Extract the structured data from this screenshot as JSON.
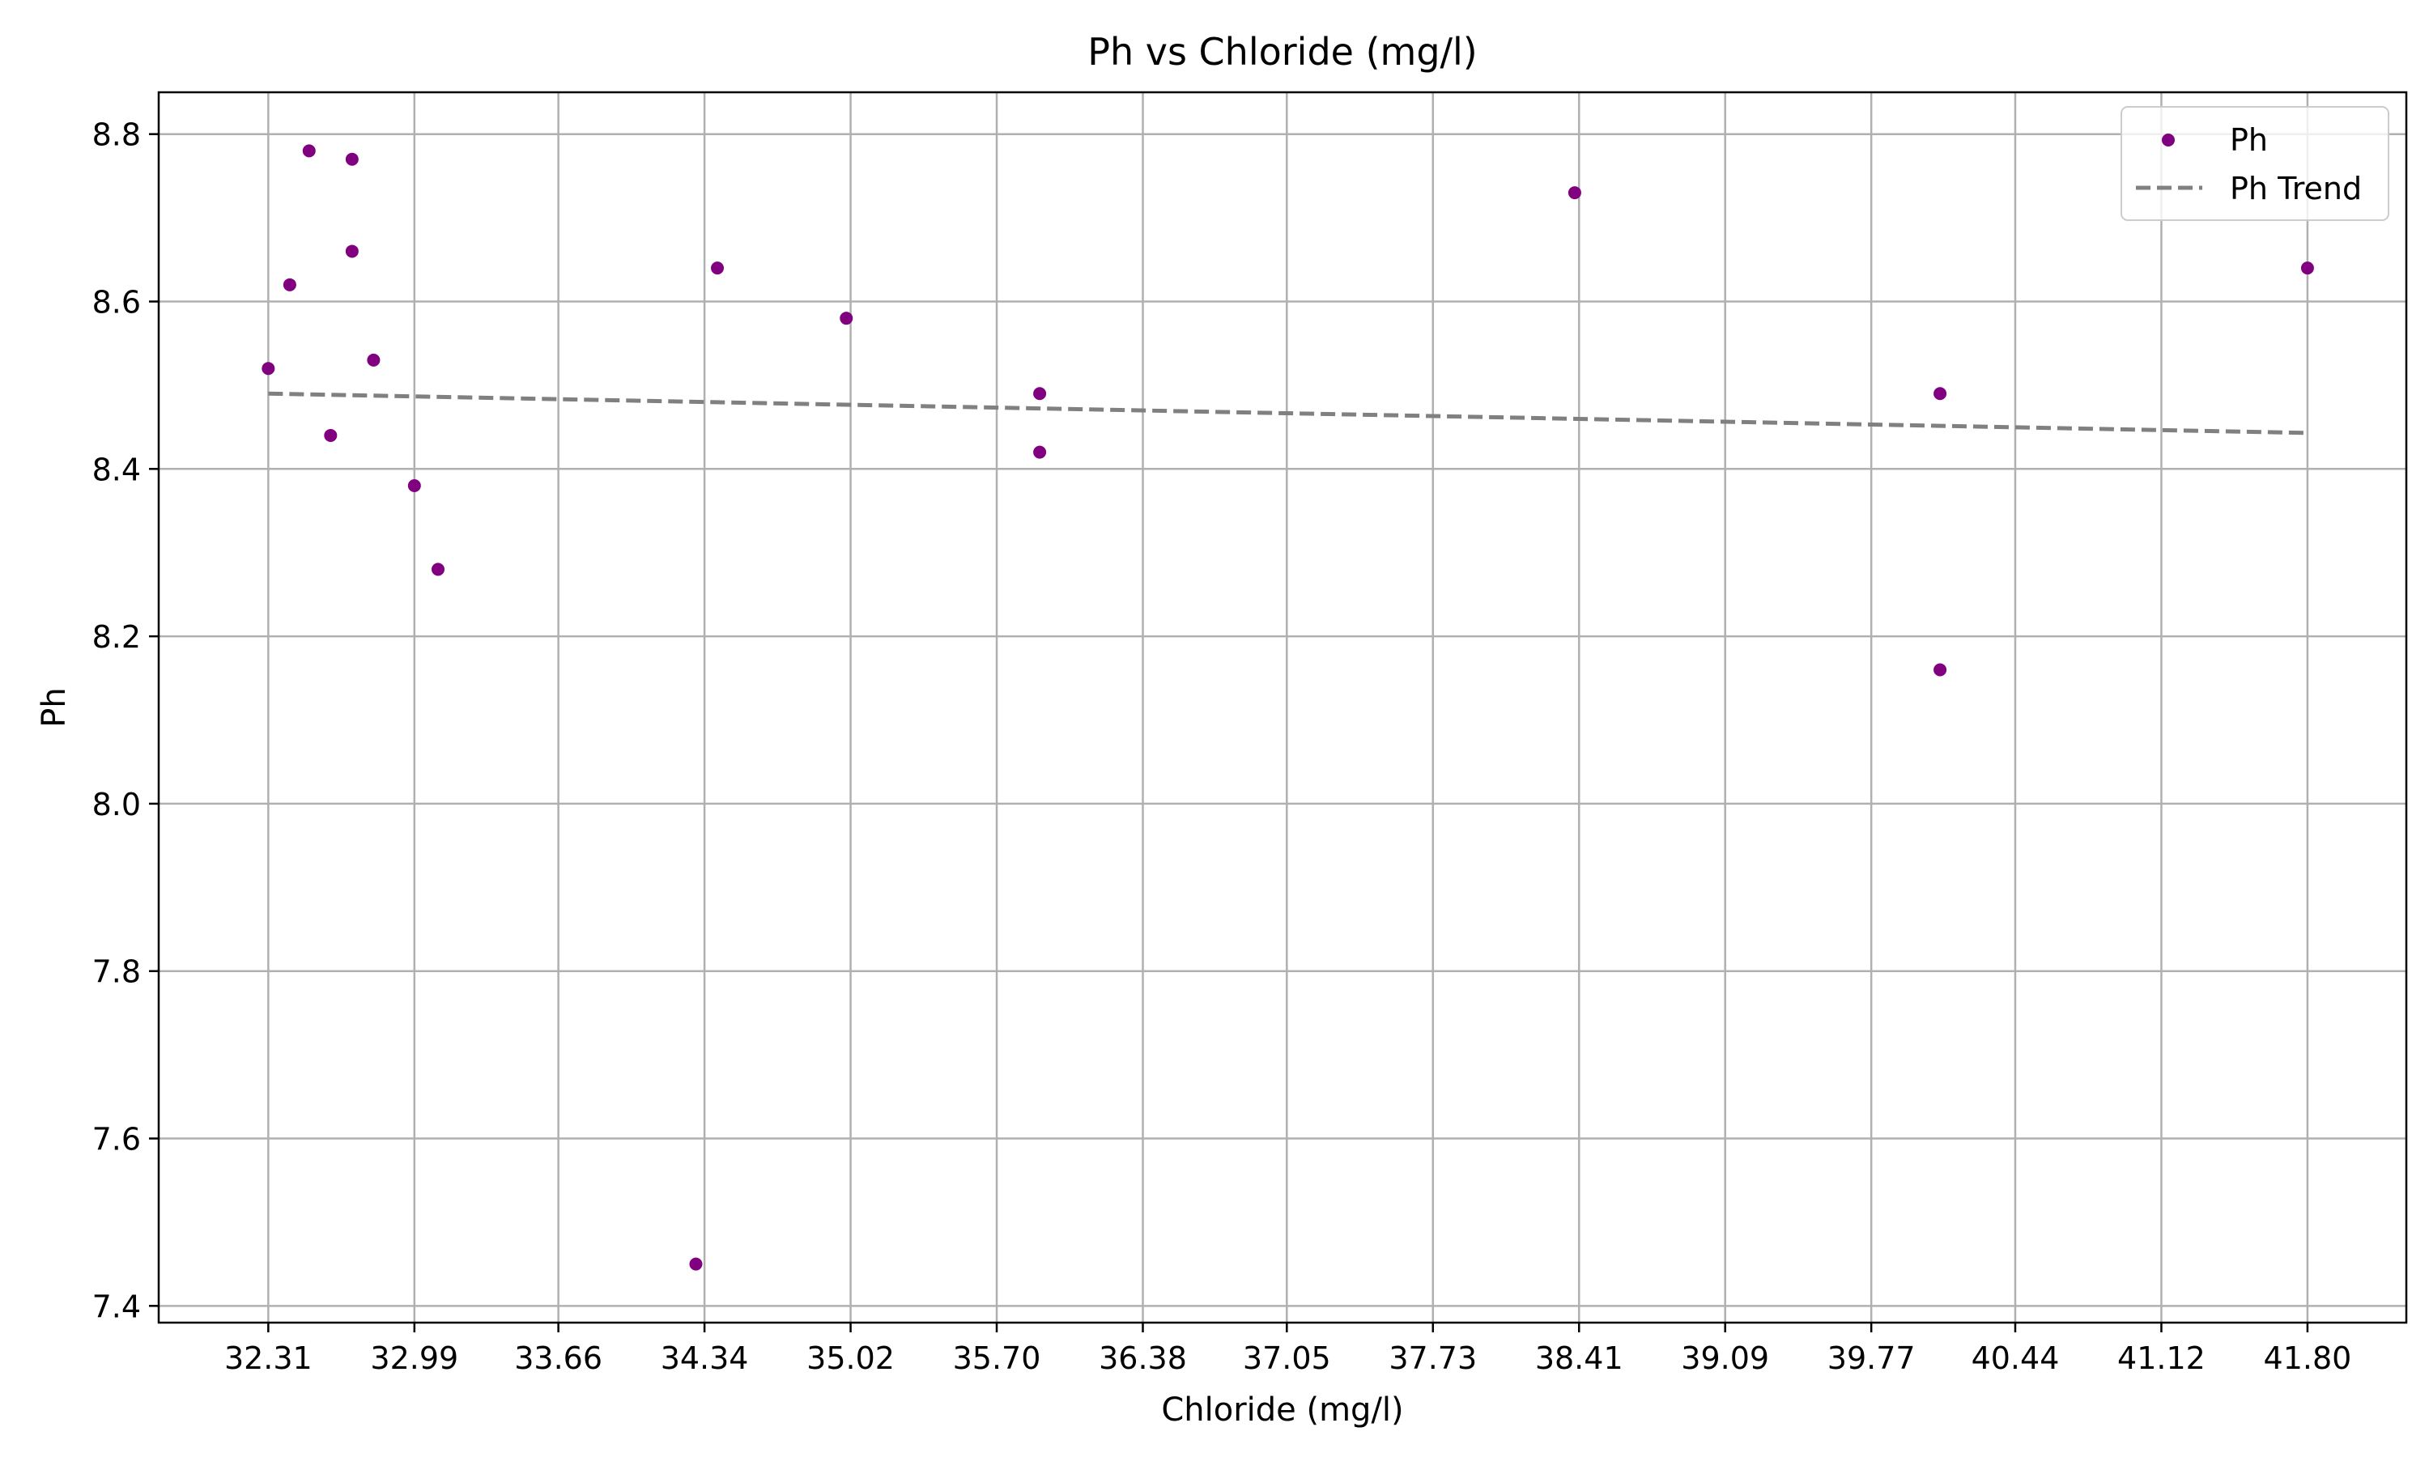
{
  "chart_data": {
    "type": "scatter",
    "title": "Ph vs Chloride (mg/l)",
    "xlabel": "Chloride (mg/l)",
    "ylabel": "Ph",
    "xlim": [
      31.8,
      42.26
    ],
    "ylim": [
      7.38,
      8.85
    ],
    "x_ticks": [
      32.31,
      32.99,
      33.66,
      34.34,
      35.02,
      35.7,
      36.38,
      37.05,
      37.73,
      38.41,
      39.09,
      39.77,
      40.44,
      41.12,
      41.8
    ],
    "x_tick_labels": [
      "32.31",
      "32.99",
      "33.66",
      "34.34",
      "35.02",
      "35.70",
      "36.38",
      "37.05",
      "37.73",
      "38.41",
      "39.09",
      "39.77",
      "40.44",
      "41.12",
      "41.80"
    ],
    "y_ticks": [
      7.4,
      7.6,
      7.8,
      8.0,
      8.2,
      8.4,
      8.6,
      8.8
    ],
    "y_tick_labels": [
      "7.4",
      "7.6",
      "7.8",
      "8.0",
      "8.2",
      "8.4",
      "8.6",
      "8.8"
    ],
    "grid": true,
    "legend_position": "top-right",
    "series": [
      {
        "name": "Ph",
        "kind": "scatter",
        "color": "#800080",
        "points": [
          {
            "x": 32.31,
            "y": 8.52
          },
          {
            "x": 32.41,
            "y": 8.62
          },
          {
            "x": 32.5,
            "y": 8.78
          },
          {
            "x": 32.6,
            "y": 8.44
          },
          {
            "x": 32.7,
            "y": 8.77
          },
          {
            "x": 32.7,
            "y": 8.66
          },
          {
            "x": 32.8,
            "y": 8.53
          },
          {
            "x": 32.99,
            "y": 8.38
          },
          {
            "x": 33.1,
            "y": 8.28
          },
          {
            "x": 34.3,
            "y": 7.45
          },
          {
            "x": 34.4,
            "y": 8.64
          },
          {
            "x": 35.0,
            "y": 8.58
          },
          {
            "x": 35.9,
            "y": 8.49
          },
          {
            "x": 35.9,
            "y": 8.42
          },
          {
            "x": 38.39,
            "y": 8.73
          },
          {
            "x": 40.09,
            "y": 8.49
          },
          {
            "x": 40.09,
            "y": 8.16
          },
          {
            "x": 41.8,
            "y": 8.64
          }
        ]
      },
      {
        "name": "Ph Trend",
        "kind": "line",
        "style": "dashed",
        "color": "#808080",
        "points": [
          {
            "x": 32.31,
            "y": 8.49
          },
          {
            "x": 41.8,
            "y": 8.443
          }
        ]
      }
    ]
  }
}
